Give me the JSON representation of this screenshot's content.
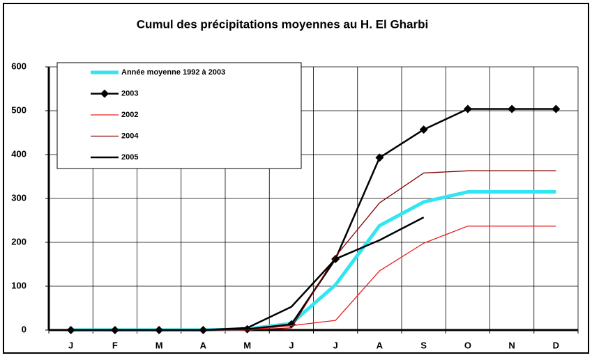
{
  "chart_data": {
    "type": "line",
    "title": "Cumul des précipitations moyennes au H. El Gharbi",
    "categories": [
      "J",
      "F",
      "M",
      "A",
      "M",
      "J",
      "J",
      "A",
      "S",
      "O",
      "N",
      "D"
    ],
    "series": [
      {
        "name": "Année moyenne 1992 à 2003",
        "color": "#33e5f0",
        "width": 5,
        "marker": "none",
        "values": [
          0,
          0,
          0,
          0,
          2,
          15,
          103,
          238,
          292,
          315,
          315,
          315
        ]
      },
      {
        "name": "2003",
        "color": "#000000",
        "width": 2.5,
        "marker": "diamond",
        "values": [
          0,
          0,
          0,
          0,
          2,
          13,
          162,
          393,
          457,
          504,
          504,
          504
        ]
      },
      {
        "name": "2002",
        "color": "#ee1c1c",
        "width": 1.3,
        "marker": "none",
        "values": [
          0,
          0,
          0,
          0,
          0,
          10,
          22,
          135,
          198,
          237,
          237,
          237
        ]
      },
      {
        "name": "2004",
        "color": "#800000",
        "width": 1.3,
        "marker": "none",
        "values": [
          0,
          0,
          0,
          0,
          0,
          5,
          168,
          290,
          358,
          363,
          363,
          363
        ]
      },
      {
        "name": "2005",
        "color": "#000000",
        "width": 2.5,
        "marker": "none",
        "values": [
          0,
          0,
          0,
          0,
          5,
          53,
          162,
          205,
          257,
          null,
          null,
          null
        ]
      }
    ],
    "ylim": [
      0,
      600
    ],
    "yticks": [
      0,
      100,
      200,
      300,
      400,
      500,
      600
    ],
    "grid": true
  }
}
